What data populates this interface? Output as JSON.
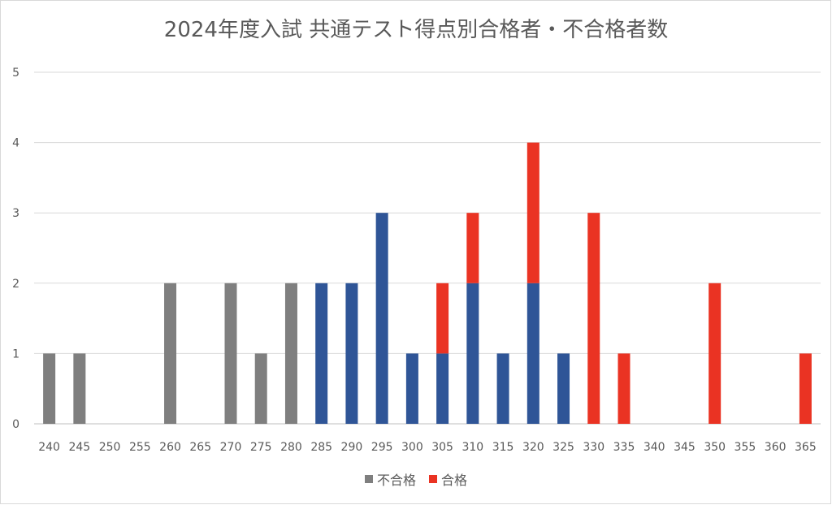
{
  "chart_data": {
    "type": "bar",
    "stacked": true,
    "title": "2024年度入試 共通テスト得点別合格者・不合格者数",
    "xlabel": "",
    "ylabel": "",
    "ylim": [
      0,
      5
    ],
    "yticks": [
      0,
      1,
      2,
      3,
      4,
      5
    ],
    "grid": true,
    "legend_position": "bottom",
    "categories": [
      "240",
      "245",
      "250",
      "255",
      "260",
      "265",
      "270",
      "275",
      "280",
      "285",
      "290",
      "295",
      "300",
      "305",
      "310",
      "315",
      "320",
      "325",
      "330",
      "335",
      "340",
      "345",
      "350",
      "355",
      "360",
      "365"
    ],
    "series": [
      {
        "name": "不合格",
        "color": "#7f7f7f",
        "values": [
          1,
          1,
          0,
          0,
          2,
          0,
          2,
          1,
          2,
          0,
          0,
          0,
          0,
          0,
          0,
          0,
          0,
          0,
          0,
          0,
          0,
          0,
          0,
          0,
          0,
          0
        ]
      },
      {
        "color": "#2f5597",
        "values": [
          0,
          0,
          0,
          0,
          0,
          0,
          0,
          0,
          0,
          2,
          2,
          3,
          1,
          1,
          2,
          1,
          2,
          1,
          0,
          0,
          0,
          0,
          0,
          0,
          0,
          0
        ]
      },
      {
        "name": "合格",
        "color": "#ea3323",
        "values": [
          0,
          0,
          0,
          0,
          0,
          0,
          0,
          0,
          0,
          0,
          0,
          0,
          0,
          1,
          1,
          0,
          2,
          0,
          3,
          1,
          0,
          0,
          2,
          0,
          0,
          1
        ]
      }
    ]
  }
}
